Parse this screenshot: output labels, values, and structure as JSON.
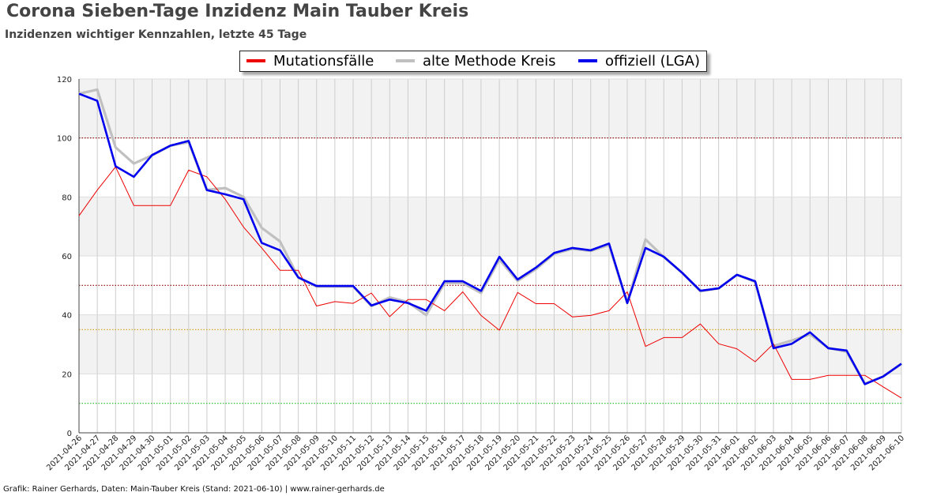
{
  "header": {
    "title": "Corona Sieben-Tage Inzidenz Main Tauber Kreis",
    "subtitle": "Inzidenzen wichtiger Kennzahlen, letzte 45 Tage"
  },
  "footer": {
    "credit": "Grafik: Rainer Gerhards, Daten: Main-Tauber Kreis (Stand: 2021-06-10) | www.rainer-gerhards.de"
  },
  "chart_data": {
    "type": "line",
    "title": "Corona Sieben-Tage Inzidenz Main Tauber Kreis",
    "subtitle": "Inzidenzen wichtiger Kennzahlen, letzte 45 Tage",
    "xlabel": "",
    "ylabel": "",
    "ylim": [
      0,
      120
    ],
    "yticks": [
      0,
      20,
      40,
      60,
      80,
      100,
      120
    ],
    "grid": true,
    "legend_placement": "top-center",
    "bands": [
      {
        "from": 20,
        "to": 40,
        "color": "#f2f2f2"
      },
      {
        "from": 60,
        "to": 80,
        "color": "#f2f2f2"
      },
      {
        "from": 100,
        "to": 120,
        "color": "#f2f2f2"
      }
    ],
    "reference_lines": [
      {
        "y": 100,
        "color": "#8b0000"
      },
      {
        "y": 50,
        "color": "#8b0000"
      },
      {
        "y": 35,
        "color": "#d4a017"
      },
      {
        "y": 10,
        "color": "#22bb22"
      }
    ],
    "x": [
      "2021-04-26",
      "2021-04-27",
      "2021-04-28",
      "2021-04-29",
      "2021-04-30",
      "2021-05-01",
      "2021-05-02",
      "2021-05-03",
      "2021-05-04",
      "2021-05-05",
      "2021-05-06",
      "2021-05-07",
      "2021-05-08",
      "2021-05-09",
      "2021-05-10",
      "2021-05-11",
      "2021-05-12",
      "2021-05-13",
      "2021-05-14",
      "2021-05-15",
      "2021-05-16",
      "2021-05-17",
      "2021-05-18",
      "2021-05-19",
      "2021-05-20",
      "2021-05-21",
      "2021-05-22",
      "2021-05-23",
      "2021-05-24",
      "2021-05-25",
      "2021-05-26",
      "2021-05-27",
      "2021-05-28",
      "2021-05-29",
      "2021-05-30",
      "2021-05-31",
      "2021-06-01",
      "2021-06-02",
      "2021-06-03",
      "2021-06-04",
      "2021-06-05",
      "2021-06-06",
      "2021-06-07",
      "2021-06-08",
      "2021-06-09",
      "2021-06-10"
    ],
    "series": [
      {
        "name": "Mutationsfälle",
        "color": "#ee0000",
        "values": [
          73.6,
          82.3,
          90.2,
          77.1,
          77.1,
          77.1,
          89.1,
          86.8,
          79.2,
          69.8,
          62.7,
          55.1,
          55.1,
          43.0,
          44.5,
          43.9,
          47.4,
          39.4,
          45.2,
          45.2,
          41.4,
          47.8,
          39.8,
          34.8,
          47.6,
          43.8,
          43.8,
          39.3,
          39.8,
          41.4,
          47.8,
          29.3,
          32.3,
          32.3,
          36.9,
          30.2,
          28.5,
          24.1,
          30.2,
          18.1,
          18.1,
          19.5,
          19.5,
          19.5,
          15.6,
          11.8
        ]
      },
      {
        "name": "alte Methode Kreis",
        "color": "#c0c0c0",
        "values": [
          115.0,
          116.4,
          96.8,
          91.3,
          94.1,
          97.4,
          98.6,
          82.4,
          83.0,
          80.0,
          69.5,
          64.9,
          52.7,
          49.6,
          49.6,
          49.6,
          43.0,
          45.9,
          44.3,
          39.9,
          50.8,
          50.8,
          47.4,
          58.8,
          51.5,
          55.5,
          60.7,
          62.4,
          61.7,
          63.7,
          44.0,
          65.6,
          59.6,
          54.3,
          48.0,
          49.0,
          53.6,
          51.2,
          29.4,
          31.3,
          33.4,
          28.8,
          27.5,
          16.7,
          19.1,
          23.4
        ]
      },
      {
        "name": "offiziell (LGA)",
        "color": "#0000ee",
        "values": [
          115.0,
          112.6,
          90.4,
          86.8,
          94.2,
          97.4,
          99.0,
          82.3,
          80.9,
          79.2,
          64.4,
          61.9,
          52.7,
          49.8,
          49.8,
          49.8,
          43.2,
          45.2,
          44.0,
          41.4,
          51.4,
          51.4,
          48.1,
          59.7,
          52.0,
          56.0,
          61.0,
          62.7,
          61.9,
          64.2,
          44.0,
          62.7,
          59.7,
          54.3,
          48.2,
          49.0,
          53.6,
          51.4,
          28.7,
          30.2,
          34.1,
          28.7,
          27.9,
          16.5,
          19.1,
          23.4
        ]
      }
    ]
  }
}
